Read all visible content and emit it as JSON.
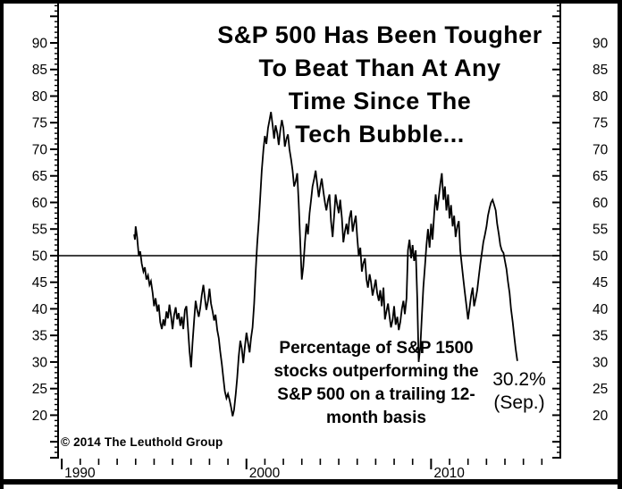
{
  "title": {
    "lines": [
      "S&P 500 Has Been Tougher",
      "To Beat Than At Any",
      "Time Since The",
      "Tech Bubble..."
    ]
  },
  "annotation": {
    "lines": [
      "Percentage of S&P 1500",
      "stocks outperforming the",
      "S&P 500 on a trailing 12-",
      "month basis"
    ]
  },
  "last_point_label": {
    "value": "30.2%",
    "period": "(Sep.)"
  },
  "copyright": "© 2014 The Leuthold Group",
  "colors": {
    "line": "#000000",
    "text": "#000000",
    "background": "#ffffff"
  },
  "chart_data": {
    "type": "line",
    "title": "S&P 500 Has Been Tougher To Beat Than At Any Time Since The Tech Bubble...",
    "subtitle": "Percentage of S&P 1500 stocks outperforming the S&P 500 on a trailing 12-month basis",
    "grid": false,
    "legend": "none",
    "reference_line": 50,
    "x_axis": {
      "range": [
        1989.8,
        2017.0
      ],
      "major_ticks": [
        1990,
        2000,
        2010
      ],
      "tick_labels": [
        "1990",
        "2000",
        "2010"
      ],
      "minor_tick_step": 1,
      "minor_tick_start": 1990,
      "minor_tick_end": 2016
    },
    "y_axis": {
      "label_min": 20,
      "label_max": 90,
      "label_step": 5,
      "tick_labels": [
        20,
        25,
        30,
        35,
        40,
        45,
        50,
        55,
        60,
        65,
        70,
        75,
        80,
        85,
        90
      ],
      "minor_tick_step": 1,
      "tick_range": [
        12,
        97
      ],
      "sides": "both"
    },
    "last_point": {
      "value": 30.2,
      "period": "Sep"
    },
    "series": [
      {
        "name": "% of S&P 1500 stocks outperforming the S&P 500 (trailing 12-month)",
        "points": [
          [
            1993.92,
            54.0
          ],
          [
            1993.96,
            53.0
          ],
          [
            1994.0,
            55.5
          ],
          [
            1994.08,
            53.5
          ],
          [
            1994.17,
            50.0
          ],
          [
            1994.25,
            50.8
          ],
          [
            1994.33,
            48.5
          ],
          [
            1994.42,
            47.0
          ],
          [
            1994.5,
            47.8
          ],
          [
            1994.58,
            45.5
          ],
          [
            1994.67,
            46.3
          ],
          [
            1994.75,
            44.5
          ],
          [
            1994.83,
            45.2
          ],
          [
            1994.92,
            43.0
          ],
          [
            1995.0,
            40.5
          ],
          [
            1995.08,
            42.0
          ],
          [
            1995.17,
            39.5
          ],
          [
            1995.25,
            40.8
          ],
          [
            1995.33,
            37.5
          ],
          [
            1995.42,
            36.2
          ],
          [
            1995.5,
            38.0
          ],
          [
            1995.58,
            36.8
          ],
          [
            1995.67,
            39.5
          ],
          [
            1995.75,
            38.2
          ],
          [
            1995.83,
            40.8
          ],
          [
            1995.92,
            38.5
          ],
          [
            1996.0,
            36.2
          ],
          [
            1996.08,
            38.8
          ],
          [
            1996.17,
            40.3
          ],
          [
            1996.25,
            38.0
          ],
          [
            1996.33,
            39.2
          ],
          [
            1996.42,
            36.8
          ],
          [
            1996.5,
            38.5
          ],
          [
            1996.58,
            36.2
          ],
          [
            1996.67,
            39.8
          ],
          [
            1996.75,
            40.5
          ],
          [
            1996.83,
            36.5
          ],
          [
            1996.92,
            32.0
          ],
          [
            1997.0,
            29.0
          ],
          [
            1997.08,
            33.5
          ],
          [
            1997.17,
            38.0
          ],
          [
            1997.25,
            41.5
          ],
          [
            1997.33,
            39.8
          ],
          [
            1997.42,
            38.5
          ],
          [
            1997.5,
            40.2
          ],
          [
            1997.58,
            42.5
          ],
          [
            1997.67,
            44.5
          ],
          [
            1997.75,
            42.0
          ],
          [
            1997.83,
            39.8
          ],
          [
            1997.92,
            41.5
          ],
          [
            1998.0,
            43.8
          ],
          [
            1998.08,
            41.0
          ],
          [
            1998.17,
            39.5
          ],
          [
            1998.25,
            37.8
          ],
          [
            1998.33,
            38.9
          ],
          [
            1998.42,
            36.0
          ],
          [
            1998.5,
            34.5
          ],
          [
            1998.58,
            32.0
          ],
          [
            1998.67,
            29.5
          ],
          [
            1998.75,
            27.0
          ],
          [
            1998.83,
            24.5
          ],
          [
            1998.92,
            23.2
          ],
          [
            1999.0,
            24.0
          ],
          [
            1999.08,
            23.0
          ],
          [
            1999.17,
            21.5
          ],
          [
            1999.25,
            19.8
          ],
          [
            1999.33,
            21.0
          ],
          [
            1999.42,
            24.0
          ],
          [
            1999.5,
            27.0
          ],
          [
            1999.58,
            31.0
          ],
          [
            1999.67,
            34.0
          ],
          [
            1999.75,
            32.5
          ],
          [
            1999.83,
            29.8
          ],
          [
            1999.92,
            33.0
          ],
          [
            2000.0,
            35.5
          ],
          [
            2000.08,
            33.8
          ],
          [
            2000.17,
            31.8
          ],
          [
            2000.25,
            34.5
          ],
          [
            2000.33,
            36.5
          ],
          [
            2000.42,
            41.0
          ],
          [
            2000.5,
            47.0
          ],
          [
            2000.58,
            52.0
          ],
          [
            2000.67,
            56.5
          ],
          [
            2000.75,
            61.0
          ],
          [
            2000.83,
            66.0
          ],
          [
            2000.92,
            70.0
          ],
          [
            2001.0,
            72.5
          ],
          [
            2001.08,
            71.0
          ],
          [
            2001.17,
            74.0
          ],
          [
            2001.25,
            75.5
          ],
          [
            2001.33,
            77.0
          ],
          [
            2001.42,
            74.5
          ],
          [
            2001.5,
            72.0
          ],
          [
            2001.58,
            74.5
          ],
          [
            2001.67,
            73.0
          ],
          [
            2001.75,
            70.8
          ],
          [
            2001.83,
            73.5
          ],
          [
            2001.92,
            75.5
          ],
          [
            2002.0,
            74.0
          ],
          [
            2002.08,
            70.5
          ],
          [
            2002.17,
            72.0
          ],
          [
            2002.25,
            72.8
          ],
          [
            2002.33,
            70.0
          ],
          [
            2002.42,
            68.0
          ],
          [
            2002.5,
            66.0
          ],
          [
            2002.58,
            63.0
          ],
          [
            2002.67,
            64.0
          ],
          [
            2002.75,
            65.5
          ],
          [
            2002.83,
            60.0
          ],
          [
            2002.92,
            52.0
          ],
          [
            2003.0,
            45.5
          ],
          [
            2003.08,
            48.0
          ],
          [
            2003.17,
            52.5
          ],
          [
            2003.25,
            56.0
          ],
          [
            2003.33,
            54.0
          ],
          [
            2003.42,
            58.0
          ],
          [
            2003.5,
            60.5
          ],
          [
            2003.58,
            63.0
          ],
          [
            2003.67,
            64.5
          ],
          [
            2003.75,
            66.0
          ],
          [
            2003.83,
            63.5
          ],
          [
            2003.92,
            61.0
          ],
          [
            2004.0,
            63.0
          ],
          [
            2004.08,
            64.5
          ],
          [
            2004.17,
            62.0
          ],
          [
            2004.25,
            60.0
          ],
          [
            2004.33,
            58.5
          ],
          [
            2004.42,
            60.5
          ],
          [
            2004.5,
            61.5
          ],
          [
            2004.58,
            56.5
          ],
          [
            2004.67,
            53.5
          ],
          [
            2004.75,
            57.5
          ],
          [
            2004.83,
            61.5
          ],
          [
            2004.92,
            59.5
          ],
          [
            2005.0,
            58.0
          ],
          [
            2005.08,
            60.5
          ],
          [
            2005.17,
            57.0
          ],
          [
            2005.25,
            52.5
          ],
          [
            2005.33,
            54.5
          ],
          [
            2005.42,
            56.0
          ],
          [
            2005.5,
            54.0
          ],
          [
            2005.58,
            57.0
          ],
          [
            2005.67,
            58.5
          ],
          [
            2005.75,
            54.5
          ],
          [
            2005.83,
            56.0
          ],
          [
            2005.92,
            57.5
          ],
          [
            2006.0,
            53.5
          ],
          [
            2006.08,
            50.0
          ],
          [
            2006.17,
            51.5
          ],
          [
            2006.25,
            47.0
          ],
          [
            2006.33,
            48.5
          ],
          [
            2006.42,
            49.5
          ],
          [
            2006.5,
            45.5
          ],
          [
            2006.58,
            44.0
          ],
          [
            2006.67,
            46.5
          ],
          [
            2006.75,
            45.0
          ],
          [
            2006.83,
            42.5
          ],
          [
            2006.92,
            44.0
          ],
          [
            2007.0,
            45.5
          ],
          [
            2007.08,
            43.0
          ],
          [
            2007.17,
            41.5
          ],
          [
            2007.25,
            43.5
          ],
          [
            2007.33,
            40.5
          ],
          [
            2007.42,
            44.0
          ],
          [
            2007.5,
            38.0
          ],
          [
            2007.58,
            39.5
          ],
          [
            2007.67,
            41.0
          ],
          [
            2007.75,
            38.5
          ],
          [
            2007.83,
            36.5
          ],
          [
            2007.92,
            38.0
          ],
          [
            2008.0,
            40.5
          ],
          [
            2008.08,
            37.0
          ],
          [
            2008.17,
            38.5
          ],
          [
            2008.25,
            36.0
          ],
          [
            2008.33,
            37.5
          ],
          [
            2008.42,
            40.0
          ],
          [
            2008.5,
            41.5
          ],
          [
            2008.58,
            39.0
          ],
          [
            2008.67,
            42.0
          ],
          [
            2008.75,
            51.0
          ],
          [
            2008.83,
            53.0
          ],
          [
            2008.92,
            49.5
          ],
          [
            2009.0,
            52.0
          ],
          [
            2009.08,
            49.0
          ],
          [
            2009.17,
            51.0
          ],
          [
            2009.25,
            42.0
          ],
          [
            2009.33,
            30.0
          ],
          [
            2009.42,
            33.0
          ],
          [
            2009.5,
            38.5
          ],
          [
            2009.58,
            44.0
          ],
          [
            2009.67,
            48.0
          ],
          [
            2009.75,
            52.0
          ],
          [
            2009.83,
            55.0
          ],
          [
            2009.92,
            51.5
          ],
          [
            2010.0,
            56.0
          ],
          [
            2010.08,
            53.0
          ],
          [
            2010.17,
            58.0
          ],
          [
            2010.25,
            61.5
          ],
          [
            2010.33,
            58.5
          ],
          [
            2010.42,
            61.0
          ],
          [
            2010.5,
            63.5
          ],
          [
            2010.58,
            65.5
          ],
          [
            2010.67,
            60.5
          ],
          [
            2010.75,
            63.0
          ],
          [
            2010.83,
            58.5
          ],
          [
            2010.92,
            61.5
          ],
          [
            2011.0,
            57.0
          ],
          [
            2011.08,
            59.5
          ],
          [
            2011.17,
            55.5
          ],
          [
            2011.25,
            57.5
          ],
          [
            2011.33,
            53.5
          ],
          [
            2011.42,
            55.5
          ],
          [
            2011.5,
            56.5
          ],
          [
            2011.58,
            51.0
          ],
          [
            2011.67,
            48.0
          ],
          [
            2011.75,
            45.5
          ],
          [
            2011.83,
            43.0
          ],
          [
            2011.92,
            40.5
          ],
          [
            2012.0,
            38.0
          ],
          [
            2012.08,
            40.0
          ],
          [
            2012.17,
            42.5
          ],
          [
            2012.25,
            44.0
          ],
          [
            2012.33,
            40.5
          ],
          [
            2012.42,
            42.0
          ],
          [
            2012.5,
            43.5
          ],
          [
            2012.58,
            46.0
          ],
          [
            2012.67,
            48.5
          ],
          [
            2012.75,
            50.5
          ],
          [
            2012.83,
            52.5
          ],
          [
            2012.92,
            54.0
          ],
          [
            2013.0,
            55.5
          ],
          [
            2013.08,
            57.5
          ],
          [
            2013.17,
            59.0
          ],
          [
            2013.25,
            60.0
          ],
          [
            2013.33,
            60.5
          ],
          [
            2013.42,
            59.5
          ],
          [
            2013.5,
            58.5
          ],
          [
            2013.58,
            56.0
          ],
          [
            2013.67,
            54.0
          ],
          [
            2013.75,
            52.0
          ],
          [
            2013.83,
            51.0
          ],
          [
            2013.92,
            50.5
          ],
          [
            2014.0,
            49.0
          ],
          [
            2014.08,
            47.5
          ],
          [
            2014.17,
            45.0
          ],
          [
            2014.25,
            43.0
          ],
          [
            2014.33,
            40.0
          ],
          [
            2014.42,
            37.5
          ],
          [
            2014.5,
            35.0
          ],
          [
            2014.58,
            32.5
          ],
          [
            2014.67,
            30.2
          ]
        ]
      }
    ]
  }
}
